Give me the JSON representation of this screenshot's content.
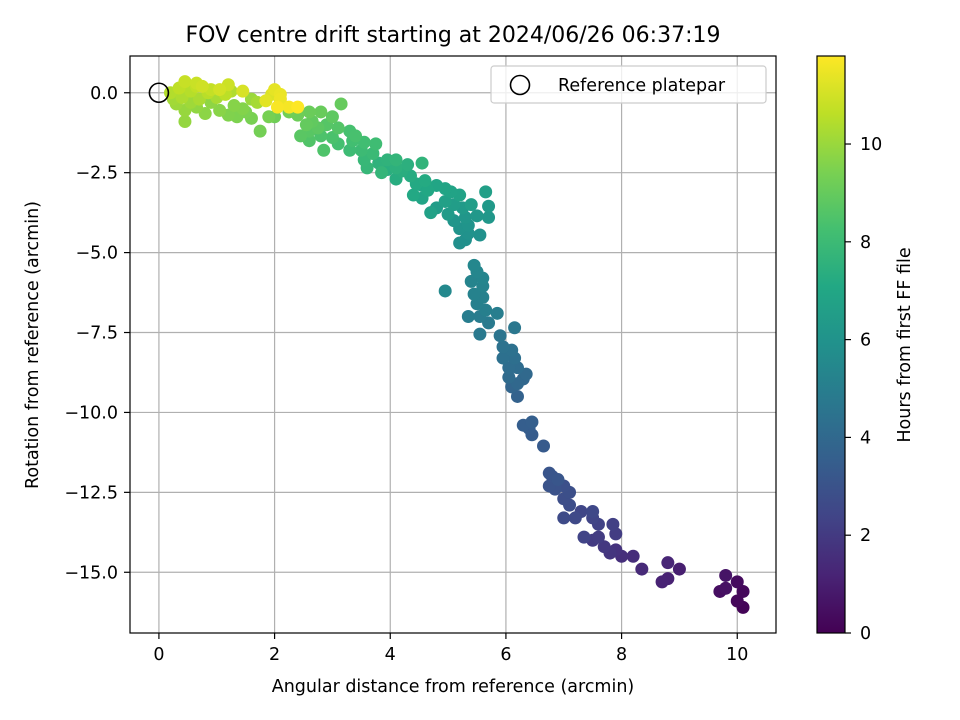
{
  "chart_data": {
    "type": "scatter",
    "title": "FOV centre drift starting at 2024/06/26 06:37:19",
    "xlabel": "Angular distance from reference (arcmin)",
    "ylabel": "Rotation from reference (arcmin)",
    "colorbar_label": "Hours from first FF file",
    "xlim": [
      -0.5,
      10.67
    ],
    "ylim": [
      -16.9,
      1.15
    ],
    "xticks": [
      0,
      2,
      4,
      6,
      8,
      10
    ],
    "xtick_labels": [
      "0",
      "2",
      "4",
      "6",
      "8",
      "10"
    ],
    "yticks": [
      0.0,
      -2.5,
      -5.0,
      -7.5,
      -10.0,
      -12.5,
      -15.0
    ],
    "ytick_labels": [
      "0.0",
      "−2.5",
      "−5.0",
      "−7.5",
      "−10.0",
      "−12.5",
      "−15.0"
    ],
    "grid": true,
    "colormap": "viridis",
    "clim": [
      0,
      11.8
    ],
    "colorbar_ticks": [
      0,
      2,
      4,
      6,
      8,
      10
    ],
    "colorbar_tick_labels": [
      "0",
      "2",
      "4",
      "6",
      "8",
      "10"
    ],
    "legend": {
      "placement": "top-right",
      "entries": [
        "Reference platepar"
      ]
    },
    "reference_point": {
      "x": 0.0,
      "y": 0.0
    },
    "points": [
      [
        10.1,
        -16.1,
        0.1
      ],
      [
        10.0,
        -15.9,
        0.2
      ],
      [
        10.1,
        -15.6,
        0.25
      ],
      [
        10.0,
        -15.3,
        0.35
      ],
      [
        9.7,
        -15.6,
        0.45
      ],
      [
        9.8,
        -15.5,
        0.55
      ],
      [
        9.8,
        -15.1,
        0.65
      ],
      [
        9.0,
        -14.9,
        1.0
      ],
      [
        8.8,
        -15.2,
        1.1
      ],
      [
        8.7,
        -15.3,
        1.15
      ],
      [
        8.8,
        -14.7,
        1.25
      ],
      [
        8.35,
        -14.9,
        1.4
      ],
      [
        8.2,
        -14.5,
        1.5
      ],
      [
        8.0,
        -14.5,
        1.6
      ],
      [
        7.9,
        -14.3,
        1.7
      ],
      [
        7.8,
        -14.4,
        1.8
      ],
      [
        7.7,
        -14.2,
        1.9
      ],
      [
        7.5,
        -14.0,
        2.0
      ],
      [
        7.6,
        -13.9,
        2.05
      ],
      [
        7.9,
        -13.8,
        2.1
      ],
      [
        7.85,
        -13.5,
        2.2
      ],
      [
        7.6,
        -13.5,
        2.3
      ],
      [
        7.35,
        -13.9,
        2.35
      ],
      [
        7.5,
        -13.3,
        2.4
      ],
      [
        7.3,
        -13.1,
        2.45
      ],
      [
        7.5,
        -13.1,
        2.55
      ],
      [
        7.2,
        -13.3,
        2.6
      ],
      [
        7.0,
        -13.3,
        2.65
      ],
      [
        7.1,
        -12.9,
        2.75
      ],
      [
        7.0,
        -12.7,
        2.8
      ],
      [
        7.1,
        -12.5,
        2.85
      ],
      [
        7.0,
        -12.3,
        2.9
      ],
      [
        6.85,
        -12.4,
        2.95
      ],
      [
        6.75,
        -12.3,
        3.0
      ],
      [
        6.8,
        -12.0,
        3.05
      ],
      [
        6.75,
        -11.9,
        3.1
      ],
      [
        6.9,
        -12.1,
        3.15
      ],
      [
        6.65,
        -11.05,
        3.3
      ],
      [
        6.45,
        -10.7,
        3.4
      ],
      [
        6.4,
        -10.5,
        3.45
      ],
      [
        6.3,
        -10.4,
        3.5
      ],
      [
        6.45,
        -10.3,
        3.55
      ],
      [
        6.2,
        -9.5,
        3.7
      ],
      [
        6.1,
        -9.2,
        3.8
      ],
      [
        6.3,
        -8.95,
        3.9
      ],
      [
        6.2,
        -9.1,
        3.95
      ],
      [
        6.35,
        -8.8,
        4.0
      ],
      [
        6.05,
        -8.9,
        4.1
      ],
      [
        6.2,
        -8.6,
        4.15
      ],
      [
        6.05,
        -8.6,
        4.2
      ],
      [
        6.15,
        -8.3,
        4.3
      ],
      [
        5.95,
        -8.3,
        4.35
      ],
      [
        6.1,
        -8.05,
        4.4
      ],
      [
        5.95,
        -7.95,
        4.45
      ],
      [
        5.9,
        -7.6,
        4.55
      ],
      [
        6.15,
        -7.35,
        4.65
      ],
      [
        5.55,
        -7.55,
        4.75
      ],
      [
        5.7,
        -7.2,
        4.8
      ],
      [
        5.55,
        -7.0,
        4.9
      ],
      [
        5.35,
        -7.0,
        4.95
      ],
      [
        5.85,
        -6.9,
        5.0
      ],
      [
        5.65,
        -6.8,
        5.05
      ],
      [
        5.5,
        -6.6,
        5.1
      ],
      [
        5.6,
        -6.4,
        5.15
      ],
      [
        5.45,
        -6.3,
        5.2
      ],
      [
        5.6,
        -6.05,
        5.25
      ],
      [
        5.4,
        -5.9,
        5.3
      ],
      [
        5.6,
        -5.8,
        5.35
      ],
      [
        5.5,
        -5.6,
        5.4
      ],
      [
        5.45,
        -5.4,
        5.45
      ],
      [
        4.95,
        -6.2,
        5.5
      ],
      [
        5.2,
        -4.7,
        5.8
      ],
      [
        5.3,
        -4.6,
        5.85
      ],
      [
        5.55,
        -4.45,
        5.9
      ],
      [
        5.35,
        -4.4,
        5.95
      ],
      [
        5.2,
        -4.25,
        6.0
      ],
      [
        5.35,
        -4.15,
        6.05
      ],
      [
        5.1,
        -4.0,
        6.1
      ],
      [
        5.3,
        -3.9,
        6.15
      ],
      [
        5.7,
        -3.9,
        6.2
      ],
      [
        5.5,
        -3.85,
        6.25
      ],
      [
        5.7,
        -3.55,
        6.3
      ],
      [
        5.25,
        -3.6,
        6.35
      ],
      [
        5.0,
        -3.8,
        6.4
      ],
      [
        4.8,
        -3.6,
        6.45
      ],
      [
        5.1,
        -3.5,
        6.5
      ],
      [
        5.4,
        -3.5,
        6.55
      ],
      [
        5.65,
        -3.1,
        6.6
      ],
      [
        4.95,
        -3.4,
        6.65
      ],
      [
        4.7,
        -3.75,
        6.7
      ],
      [
        5.2,
        -3.2,
        6.75
      ],
      [
        5.05,
        -3.1,
        6.8
      ],
      [
        4.55,
        -3.3,
        6.85
      ],
      [
        4.95,
        -3.0,
        6.9
      ],
      [
        4.8,
        -2.9,
        6.95
      ],
      [
        4.55,
        -2.9,
        7.0
      ],
      [
        4.65,
        -3.05,
        7.05
      ],
      [
        4.4,
        -3.2,
        7.1
      ],
      [
        4.45,
        -2.85,
        7.15
      ],
      [
        4.6,
        -2.75,
        7.2
      ],
      [
        4.35,
        -2.6,
        7.25
      ],
      [
        4.1,
        -2.7,
        7.3
      ],
      [
        4.2,
        -2.45,
        7.35
      ],
      [
        3.95,
        -2.4,
        7.4
      ],
      [
        4.3,
        -2.25,
        7.45
      ],
      [
        4.1,
        -2.35,
        7.5
      ],
      [
        3.8,
        -2.2,
        7.55
      ],
      [
        3.95,
        -2.1,
        7.6
      ],
      [
        4.55,
        -2.2,
        7.65
      ],
      [
        4.1,
        -2.1,
        7.7
      ],
      [
        3.85,
        -2.5,
        7.75
      ],
      [
        3.6,
        -2.35,
        7.8
      ],
      [
        3.55,
        -2.1,
        7.85
      ],
      [
        3.7,
        -1.9,
        7.95
      ],
      [
        3.5,
        -1.8,
        8.0
      ],
      [
        3.3,
        -1.8,
        8.05
      ],
      [
        3.75,
        -1.6,
        8.1
      ],
      [
        3.55,
        -1.55,
        8.15
      ],
      [
        3.35,
        -1.5,
        8.2
      ],
      [
        3.1,
        -1.6,
        8.25
      ],
      [
        3.3,
        -1.2,
        8.3
      ],
      [
        3.4,
        -1.35,
        8.35
      ],
      [
        3.0,
        -1.4,
        8.4
      ],
      [
        2.8,
        -1.35,
        8.45
      ],
      [
        2.85,
        -1.8,
        8.5
      ],
      [
        2.6,
        -1.5,
        8.55
      ],
      [
        3.1,
        -1.1,
        8.6
      ],
      [
        2.9,
        -1.0,
        8.65
      ],
      [
        2.6,
        -1.2,
        8.7
      ],
      [
        2.45,
        -1.35,
        8.75
      ],
      [
        2.75,
        -1.1,
        8.8
      ],
      [
        3.0,
        -0.75,
        8.85
      ],
      [
        2.65,
        -0.9,
        8.9
      ],
      [
        2.55,
        -1.0,
        8.95
      ],
      [
        3.15,
        -0.35,
        9.0
      ],
      [
        2.8,
        -0.6,
        9.05
      ],
      [
        2.6,
        -0.6,
        9.1
      ],
      [
        2.4,
        -0.7,
        9.15
      ],
      [
        2.0,
        -0.75,
        9.2
      ],
      [
        2.25,
        -0.6,
        9.25
      ],
      [
        1.75,
        -1.2,
        9.3
      ],
      [
        1.9,
        -0.75,
        9.35
      ],
      [
        1.6,
        -0.8,
        9.4
      ],
      [
        1.5,
        -0.6,
        9.45
      ],
      [
        1.35,
        -0.75,
        9.5
      ],
      [
        1.2,
        -0.7,
        9.55
      ],
      [
        1.45,
        -0.5,
        9.6
      ],
      [
        1.3,
        -0.4,
        9.65
      ],
      [
        1.05,
        -0.55,
        9.7
      ],
      [
        0.8,
        -0.65,
        9.75
      ],
      [
        0.9,
        -0.3,
        9.8
      ],
      [
        0.65,
        -0.45,
        9.85
      ],
      [
        0.45,
        -0.9,
        9.9
      ],
      [
        0.45,
        -0.55,
        9.95
      ],
      [
        1.6,
        -0.2,
        10.0
      ],
      [
        0.3,
        -0.35,
        10.05
      ],
      [
        0.55,
        -0.3,
        10.1
      ],
      [
        0.25,
        -0.2,
        10.15
      ],
      [
        1.7,
        -0.3,
        10.2
      ],
      [
        1.0,
        -0.15,
        10.25
      ],
      [
        0.7,
        -0.2,
        10.3
      ],
      [
        0.4,
        -0.15,
        10.35
      ],
      [
        1.25,
        0.05,
        10.4
      ],
      [
        0.2,
        0.0,
        10.45
      ],
      [
        0.55,
        0.05,
        10.5
      ],
      [
        0.85,
        0.0,
        10.55
      ],
      [
        1.15,
        -0.05,
        10.6
      ],
      [
        0.35,
        0.15,
        10.65
      ],
      [
        0.65,
        0.2,
        10.7
      ],
      [
        0.9,
        0.1,
        10.75
      ],
      [
        0.45,
        0.35,
        10.8
      ],
      [
        0.65,
        0.3,
        10.85
      ],
      [
        1.2,
        0.25,
        10.9
      ],
      [
        0.75,
        0.2,
        10.95
      ],
      [
        1.05,
        0.1,
        11.0
      ],
      [
        1.45,
        0.05,
        11.1
      ],
      [
        1.95,
        -0.05,
        11.2
      ],
      [
        1.85,
        -0.25,
        11.3
      ],
      [
        2.0,
        0.1,
        11.35
      ],
      [
        2.1,
        -0.05,
        11.45
      ],
      [
        2.1,
        -0.2,
        11.5
      ],
      [
        2.25,
        -0.45,
        11.65
      ],
      [
        2.05,
        -0.45,
        11.7
      ],
      [
        2.4,
        -0.45,
        11.8
      ]
    ]
  }
}
